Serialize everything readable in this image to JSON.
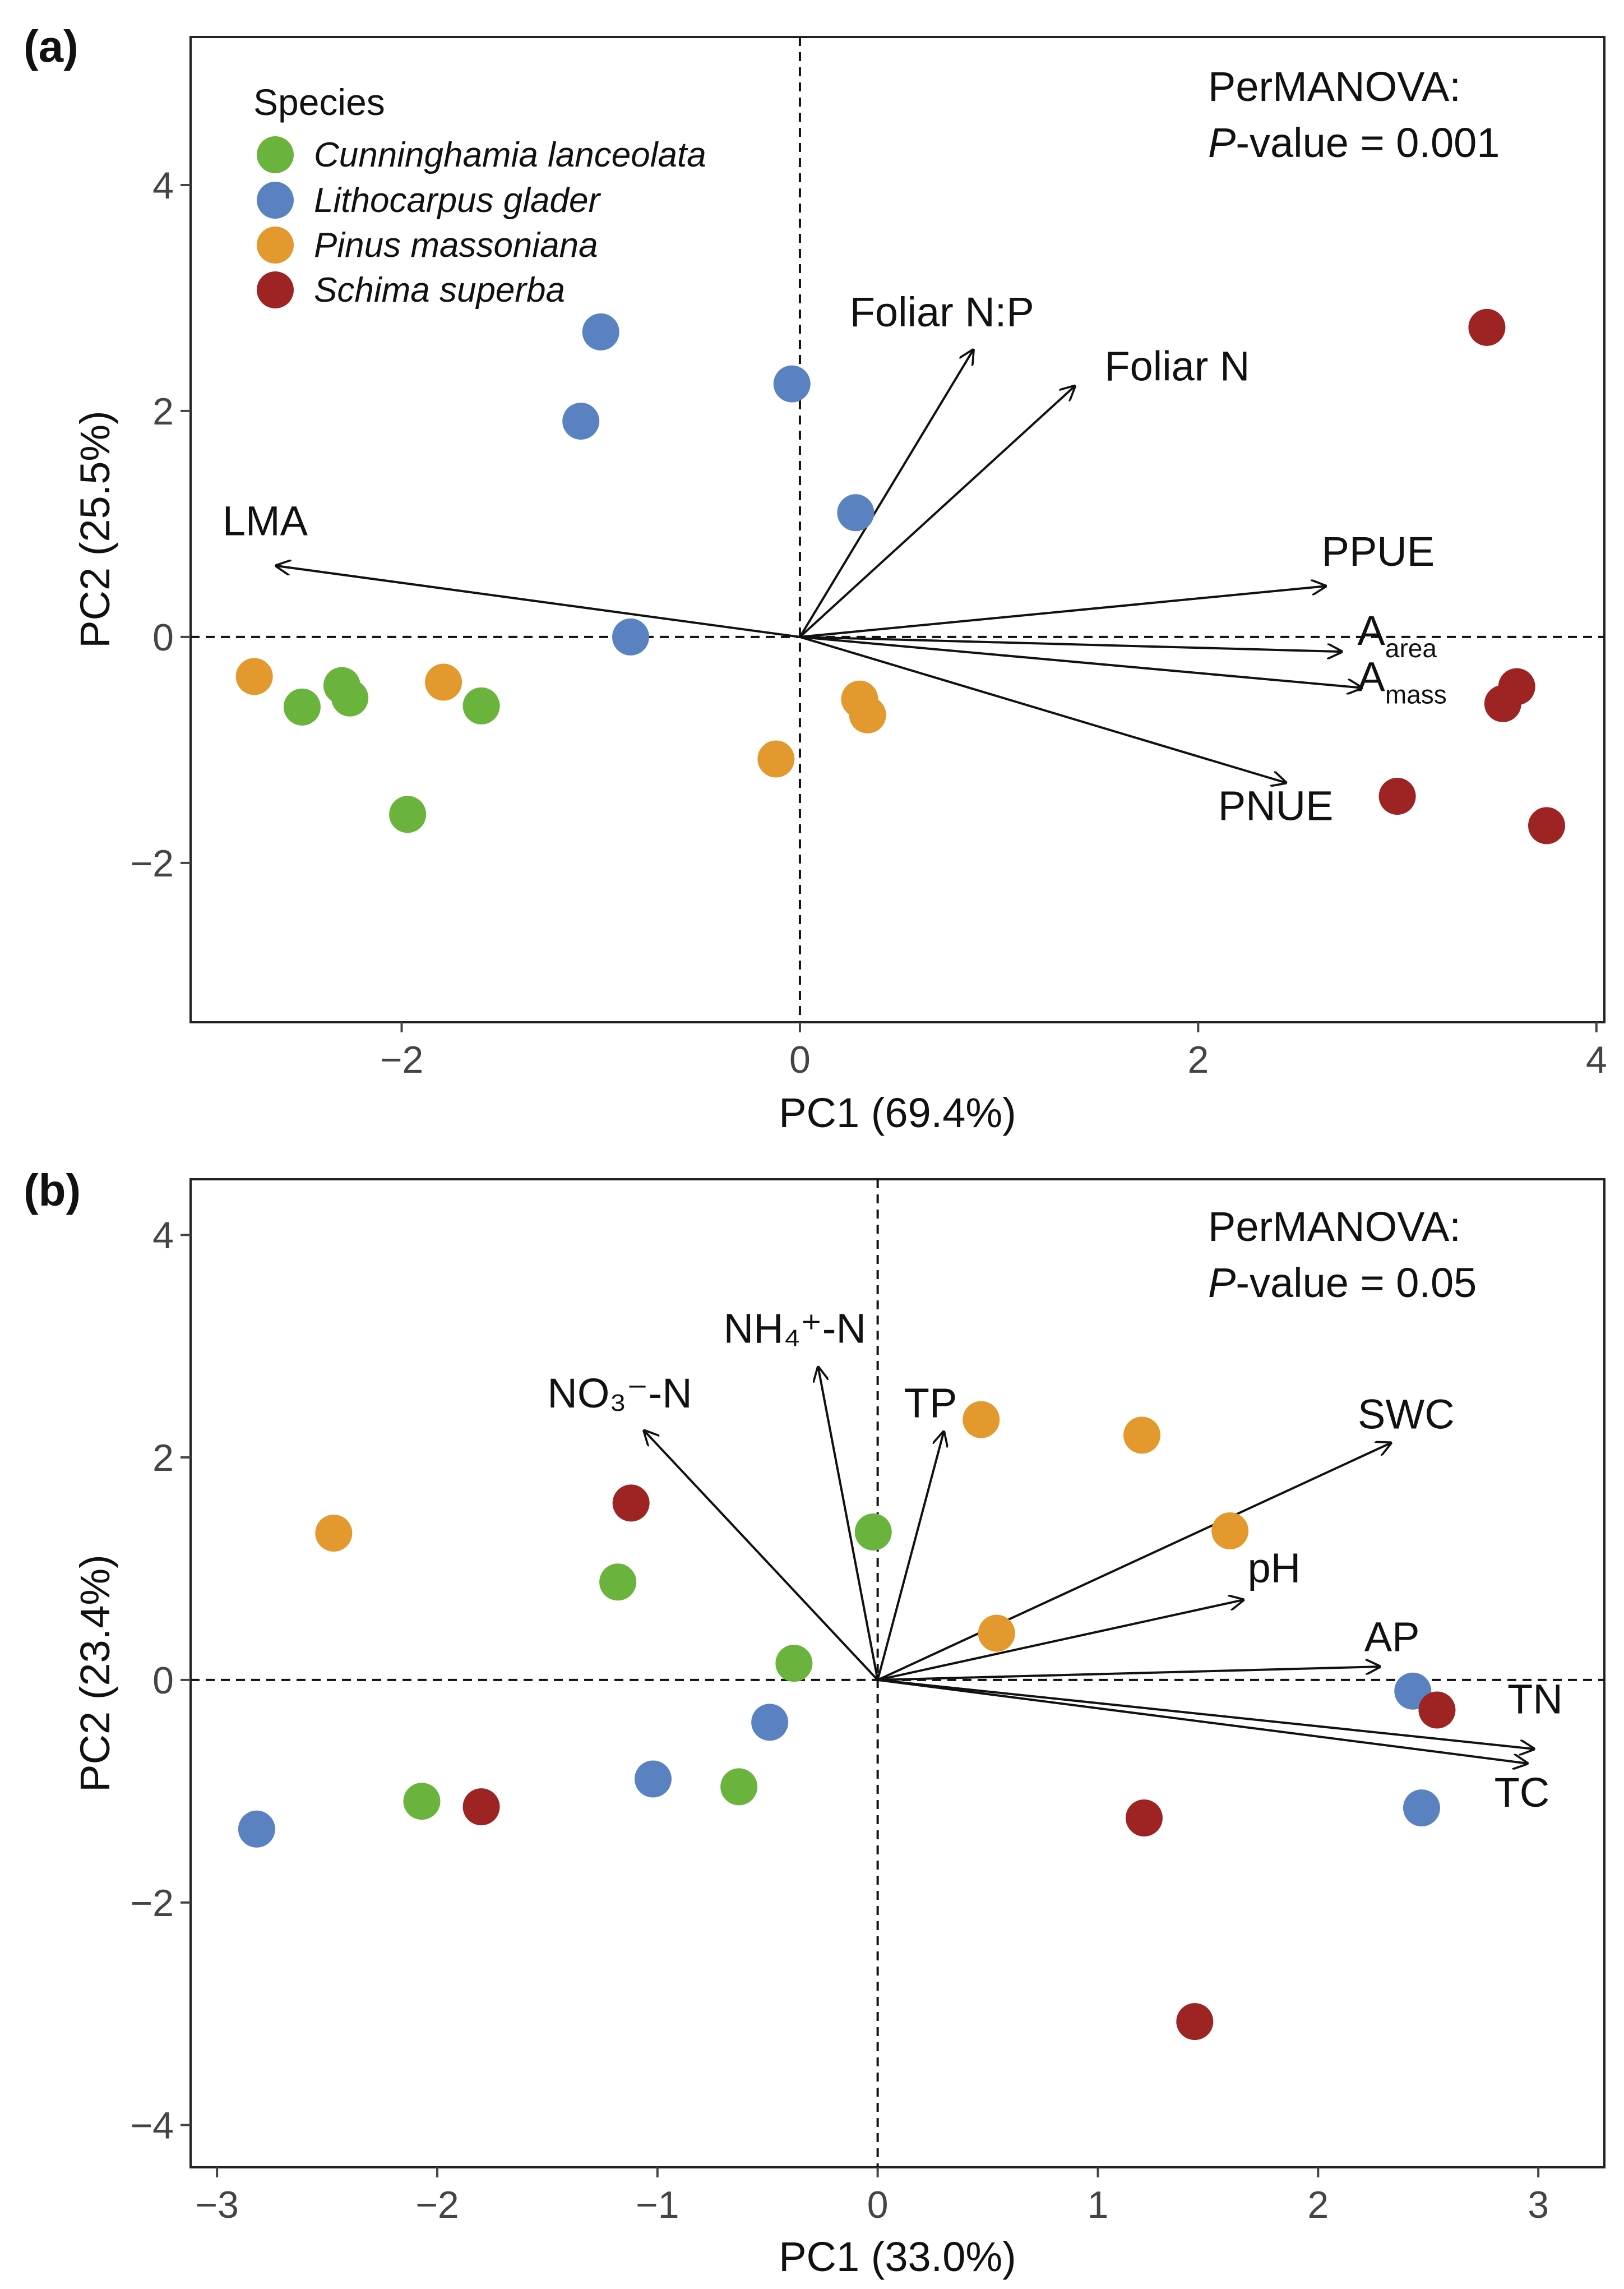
{
  "legend": {
    "title": "Species",
    "items": [
      {
        "label": "Cunninghamia lanceolata",
        "color": "#6ab33c"
      },
      {
        "label": "Lithocarpus glader",
        "color": "#5b82c0"
      },
      {
        "label": "Pinus massoniana",
        "color": "#e3992e"
      },
      {
        "label": "Schima superba",
        "color": "#9e2323"
      }
    ]
  },
  "chart_data": [
    {
      "panel": "(a)",
      "type": "scatter",
      "subtype": "pca-biplot",
      "xlabel": "PC1 (69.4%)",
      "ylabel": "PC2 (25.5%)",
      "xlim": [
        -3.06,
        4.04
      ],
      "ylim": [
        -3.41,
        5.31
      ],
      "xticks": [
        -2,
        0,
        2,
        4
      ],
      "yticks": [
        -2,
        0,
        2,
        4
      ],
      "annotation": {
        "line1": "PerMANOVA:",
        "p_label": "P",
        "p_rest": "-value = 0.001"
      },
      "series": [
        {
          "name": "Cunninghamia lanceolata",
          "points": [
            [
              -2.5,
              -0.62
            ],
            [
              -2.3,
              -0.43
            ],
            [
              -2.26,
              -0.54
            ],
            [
              -1.6,
              -0.61
            ],
            [
              -1.97,
              -1.57
            ]
          ]
        },
        {
          "name": "Lithocarpus glader",
          "points": [
            [
              -1.0,
              2.7
            ],
            [
              -1.1,
              1.91
            ],
            [
              -0.04,
              2.24
            ],
            [
              0.28,
              1.1
            ],
            [
              -0.85,
              0.0
            ]
          ]
        },
        {
          "name": "Pinus massoniana",
          "points": [
            [
              -2.74,
              -0.35
            ],
            [
              -1.79,
              -0.4
            ],
            [
              -0.12,
              -1.08
            ],
            [
              0.3,
              -0.55
            ],
            [
              0.34,
              -0.69
            ]
          ]
        },
        {
          "name": "Schima superba",
          "points": [
            [
              3.45,
              2.74
            ],
            [
              3.6,
              -0.44
            ],
            [
              3.53,
              -0.59
            ],
            [
              3.75,
              -1.67
            ],
            [
              3.0,
              -1.41
            ]
          ]
        }
      ],
      "loadings": [
        {
          "label": "LMA",
          "sub": "",
          "x": -2.63,
          "y": 0.63,
          "lx": -2.9,
          "ly": 0.9
        },
        {
          "label": "Foliar N:P",
          "sub": "",
          "x": 0.87,
          "y": 2.54,
          "lx": 0.25,
          "ly": 2.75
        },
        {
          "label": "Foliar N",
          "sub": "",
          "x": 1.38,
          "y": 2.22,
          "lx": 1.53,
          "ly": 2.27
        },
        {
          "label": "PPUE",
          "sub": "",
          "x": 2.64,
          "y": 0.45,
          "lx": 2.62,
          "ly": 0.63
        },
        {
          "label": "A",
          "sub": "area",
          "x": 2.72,
          "y": -0.13,
          "lx": 2.8,
          "ly": -0.07
        },
        {
          "label": "A",
          "sub": "mass",
          "x": 2.82,
          "y": -0.45,
          "lx": 2.8,
          "ly": -0.48
        },
        {
          "label": "PNUE",
          "sub": "",
          "x": 2.44,
          "y": -1.29,
          "lx": 2.1,
          "ly": -1.62
        }
      ]
    },
    {
      "panel": "(b)",
      "type": "scatter",
      "subtype": "pca-biplot",
      "xlabel": "PC1 (33.0%)",
      "ylabel": "PC2 (23.4%)",
      "xlim": [
        -3.12,
        3.3
      ],
      "ylim": [
        -4.38,
        4.5
      ],
      "xticks": [
        -3,
        -2,
        -1,
        0,
        1,
        2,
        3
      ],
      "yticks": [
        -4,
        -2,
        0,
        2,
        4
      ],
      "annotation": {
        "line1": "PerMANOVA:",
        "p_label": "P",
        "p_rest": "-value = 0.05"
      },
      "series": [
        {
          "name": "Cunninghamia lanceolata",
          "points": [
            [
              -0.02,
              1.33
            ],
            [
              -1.18,
              0.88
            ],
            [
              -0.38,
              0.15
            ],
            [
              -2.07,
              -1.09
            ],
            [
              -0.63,
              -0.96
            ]
          ]
        },
        {
          "name": "Lithocarpus glader",
          "points": [
            [
              -2.82,
              -1.34
            ],
            [
              -1.02,
              -0.89
            ],
            [
              -0.49,
              -0.38
            ],
            [
              2.43,
              -0.1
            ],
            [
              2.47,
              -1.15
            ]
          ]
        },
        {
          "name": "Pinus massoniana",
          "points": [
            [
              -2.47,
              1.32
            ],
            [
              0.47,
              2.34
            ],
            [
              1.2,
              2.2
            ],
            [
              1.6,
              1.34
            ],
            [
              0.54,
              0.42
            ]
          ]
        },
        {
          "name": "Schima superba",
          "points": [
            [
              -1.12,
              1.59
            ],
            [
              -1.8,
              -1.14
            ],
            [
              2.54,
              -0.27
            ],
            [
              1.21,
              -1.24
            ],
            [
              1.44,
              -3.07
            ]
          ]
        }
      ],
      "loadings": [
        {
          "label": "NO₃⁻-N",
          "sub": "",
          "x": -1.06,
          "y": 2.24,
          "lx": -1.5,
          "ly": 2.45
        },
        {
          "label": "NH₄⁺-N",
          "sub": "",
          "x": -0.27,
          "y": 2.81,
          "lx": -0.7,
          "ly": 3.03
        },
        {
          "label": "TP",
          "sub": "",
          "x": 0.3,
          "y": 2.23,
          "lx": 0.12,
          "ly": 2.36
        },
        {
          "label": "SWC",
          "sub": "",
          "x": 2.33,
          "y": 2.13,
          "lx": 2.18,
          "ly": 2.26
        },
        {
          "label": "pH",
          "sub": "",
          "x": 1.66,
          "y": 0.72,
          "lx": 1.68,
          "ly": 0.88
        },
        {
          "label": "AP",
          "sub": "",
          "x": 2.28,
          "y": 0.12,
          "lx": 2.21,
          "ly": 0.26
        },
        {
          "label": "TN",
          "sub": "",
          "x": 2.98,
          "y": -0.62,
          "lx": 2.86,
          "ly": -0.3
        },
        {
          "label": "TC",
          "sub": "",
          "x": 2.95,
          "y": -0.75,
          "lx": 2.8,
          "ly": -1.14
        }
      ]
    }
  ]
}
